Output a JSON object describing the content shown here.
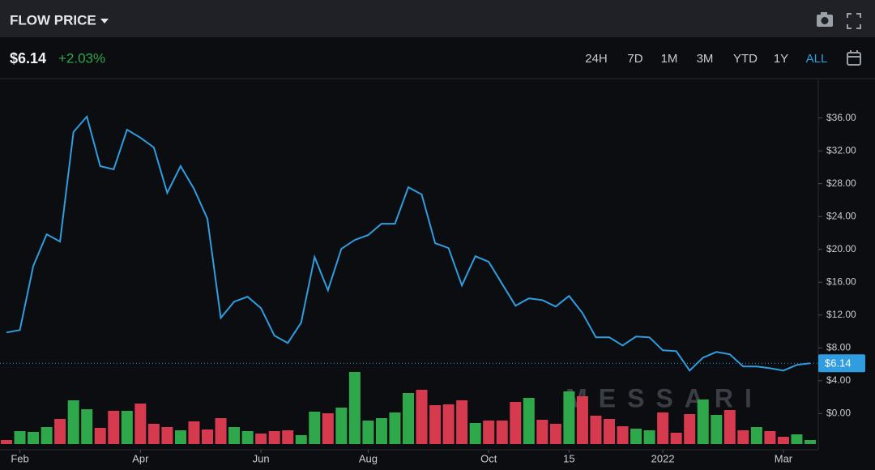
{
  "header": {
    "title": "FLOW PRICE",
    "price": "$6.14",
    "change": "+2.03%",
    "ranges": [
      "24H",
      "7D",
      "1M",
      "3M",
      "YTD",
      "1Y",
      "ALL"
    ],
    "active_range_index": 6
  },
  "chart_data": {
    "type": "line",
    "watermark": "MESSARI",
    "categories": [
      null,
      "Feb",
      null,
      null,
      null,
      null,
      null,
      null,
      null,
      null,
      "Apr",
      null,
      null,
      null,
      null,
      null,
      null,
      null,
      null,
      "Jun",
      null,
      null,
      null,
      null,
      null,
      null,
      null,
      "Aug",
      null,
      null,
      null,
      null,
      null,
      null,
      null,
      null,
      "Oct",
      null,
      null,
      null,
      null,
      null,
      "15",
      null,
      null,
      null,
      null,
      null,
      null,
      "2022",
      null,
      null,
      null,
      null,
      null,
      null,
      null,
      null,
      "Mar",
      null,
      null
    ],
    "series": [
      {
        "color": "#2f9de0",
        "values": [
          9.88,
          10.18,
          17.98,
          21.84,
          20.95,
          34.29,
          36.17,
          30.14,
          29.74,
          34.58,
          33.6,
          32.41,
          26.88,
          30.14,
          27.37,
          23.72,
          11.66,
          13.64,
          14.23,
          12.85,
          9.49,
          8.6,
          11.07,
          19.07,
          15.02,
          20.06,
          21.15,
          21.74,
          23.12,
          23.12,
          27.57,
          26.68,
          20.75,
          20.16,
          15.61,
          19.17,
          18.48,
          15.81,
          13.14,
          14.03,
          13.83,
          13.04,
          14.33,
          12.25,
          9.29,
          9.29,
          8.3,
          9.39,
          9.29,
          7.71,
          7.61,
          5.24,
          6.82,
          7.51,
          7.21,
          5.73,
          5.73,
          5.53,
          5.24,
          5.93,
          6.14
        ]
      },
      {
        "type": "bar",
        "axis": "y2",
        "colors": [
          "#d63a4f",
          "#2ea84a",
          "#2ea84a",
          "#2ea84a",
          "#d63a4f",
          "#2ea84a",
          "#2ea84a",
          "#d63a4f",
          "#d63a4f",
          "#2ea84a",
          "#d63a4f",
          "#d63a4f",
          "#d63a4f",
          "#2ea84a",
          "#d63a4f",
          "#d63a4f",
          "#d63a4f",
          "#2ea84a",
          "#2ea84a",
          "#d63a4f",
          "#d63a4f",
          "#d63a4f",
          "#2ea84a",
          "#2ea84a",
          "#d63a4f",
          "#2ea84a",
          "#2ea84a",
          "#2ea84a",
          "#2ea84a",
          "#2ea84a",
          "#2ea84a",
          "#d63a4f",
          "#d63a4f",
          "#d63a4f",
          "#d63a4f",
          "#2ea84a",
          "#d63a4f",
          "#d63a4f",
          "#d63a4f",
          "#2ea84a",
          "#d63a4f",
          "#d63a4f",
          "#2ea84a",
          "#d63a4f",
          "#d63a4f",
          "#d63a4f",
          "#d63a4f",
          "#2ea84a",
          "#2ea84a",
          "#d63a4f",
          "#d63a4f",
          "#d63a4f",
          "#2ea84a",
          "#2ea84a",
          "#d63a4f",
          "#d63a4f",
          "#2ea84a",
          "#d63a4f",
          "#d63a4f",
          "#2ea84a",
          "#2ea84a"
        ],
        "values": [
          5,
          16,
          15,
          21,
          31,
          54,
          43,
          20,
          41,
          41,
          50,
          25,
          21,
          17,
          28,
          18,
          32,
          21,
          16,
          13,
          16,
          17,
          11,
          40,
          38,
          45,
          89,
          29,
          32,
          39,
          63,
          67,
          48,
          49,
          54,
          26,
          29,
          29,
          52,
          57,
          30,
          25,
          65,
          59,
          35,
          31,
          22,
          19,
          17,
          39,
          14,
          37,
          55,
          36,
          42,
          17,
          21,
          16,
          9,
          12,
          5
        ]
      }
    ],
    "ylim": [
      -4.4,
      40.5
    ],
    "yticks": [
      {
        "value": 0,
        "label": "$0.00"
      },
      {
        "value": 4,
        "label": "$4.00"
      },
      {
        "value": 8,
        "label": "$8.00"
      },
      {
        "value": 12,
        "label": "$12.00"
      },
      {
        "value": 16,
        "label": "$16.00"
      },
      {
        "value": 20,
        "label": "$20.00"
      },
      {
        "value": 24,
        "label": "$24.00"
      },
      {
        "value": 28,
        "label": "$28.00"
      },
      {
        "value": 32,
        "label": "$32.00"
      },
      {
        "value": 36,
        "label": "$36.00"
      }
    ],
    "y2lim": [
      0,
      100
    ]
  }
}
